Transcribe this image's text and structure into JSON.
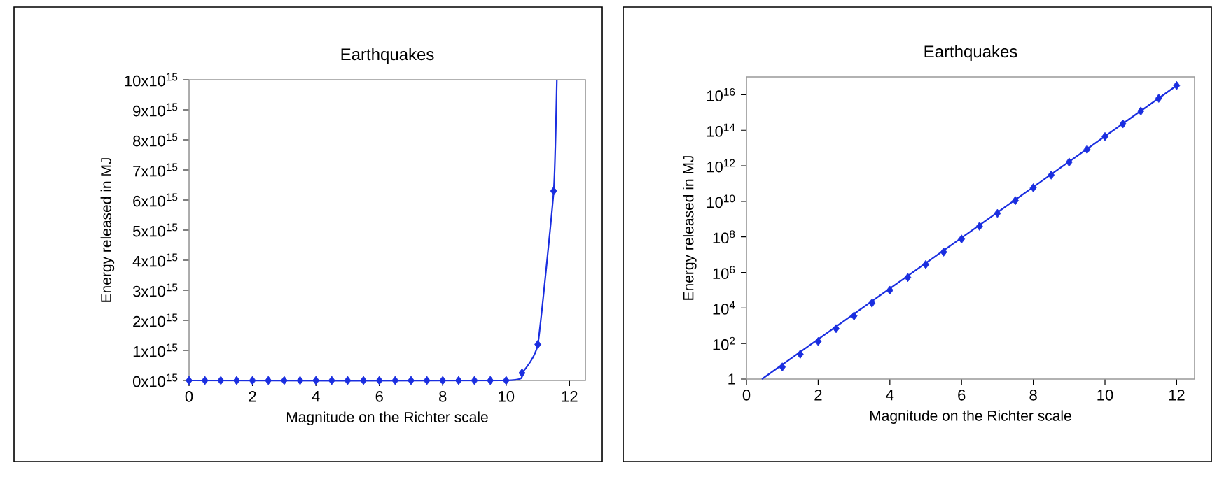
{
  "chart_data": [
    {
      "type": "line",
      "title": "Earthquakes",
      "xlabel": "Magnitude on the Richter scale",
      "ylabel": "Energy released in MJ",
      "xlim": [
        0,
        12.5
      ],
      "xticks": [
        0,
        2,
        4,
        6,
        8,
        10,
        12
      ],
      "ylim": [
        0,
        1e+16
      ],
      "yticks": [
        {
          "value": 0,
          "label": "0x10$^{15}$"
        },
        {
          "value": 1000000000000000.0,
          "label": "1x10$^{15}$"
        },
        {
          "value": 2000000000000000.0,
          "label": "2x10$^{15}$"
        },
        {
          "value": 3000000000000000.0,
          "label": "3x10$^{15}$"
        },
        {
          "value": 4000000000000000.0,
          "label": "4x10$^{15}$"
        },
        {
          "value": 5000000000000000.0,
          "label": "5x10$^{15}$"
        },
        {
          "value": 6000000000000000.0,
          "label": "6x10$^{15}$"
        },
        {
          "value": 7000000000000000.0,
          "label": "7x10$^{15}$"
        },
        {
          "value": 8000000000000000.0,
          "label": "8x10$^{15}$"
        },
        {
          "value": 9000000000000000.0,
          "label": "9x10$^{15}$"
        },
        {
          "value": 1e+16,
          "label": "10x10$^{15}$"
        }
      ],
      "series": [
        {
          "color": "#1a2ee0",
          "marker": "none",
          "x": [
            0,
            10,
            10.5,
            11,
            11.5,
            11.6
          ],
          "values": [
            0,
            0,
            250000000000000.0,
            1200000000000000.0,
            6300000000000000.0,
            1e+16
          ]
        },
        {
          "type": "scatter",
          "color": "#1a2ee0",
          "marker": "diamond",
          "x": [
            0,
            0.5,
            1,
            1.5,
            2,
            2.5,
            3,
            3.5,
            4,
            4.5,
            5,
            5.5,
            6,
            6.5,
            7,
            7.5,
            8,
            8.5,
            9,
            9.5,
            10,
            10.5,
            11,
            11.5
          ],
          "values": [
            0,
            0,
            0,
            0,
            0,
            0,
            0,
            0,
            0,
            0,
            0,
            0,
            0,
            0,
            0,
            0,
            0,
            0,
            0,
            0,
            0,
            250000000000000.0,
            1200000000000000.0,
            6300000000000000.0
          ]
        }
      ]
    },
    {
      "type": "line",
      "title": "Earthquakes",
      "xlabel": "Magnitude on the Richter scale",
      "ylabel": "Energy released in MJ",
      "log": "y",
      "xlim": [
        0,
        12.5
      ],
      "xticks": [
        0,
        2,
        4,
        6,
        8,
        10,
        12
      ],
      "ylim": [
        1,
        1e+17
      ],
      "yticks": [
        1,
        {
          "value": 100,
          "label": "10$^{2}$"
        },
        {
          "value": 10000.0,
          "label": "10$^{4}$"
        },
        {
          "value": 1000000.0,
          "label": "10$^{6}$"
        },
        {
          "value": 100000000.0,
          "label": "10$^{8}$"
        },
        {
          "value": 10000000000.0,
          "label": "10$^{10}$"
        },
        {
          "value": 1000000000000.0,
          "label": "10$^{12}$"
        },
        {
          "value": 100000000000000.0,
          "label": "10$^{14}$"
        },
        {
          "value": 1e+16,
          "label": "10$^{16}$"
        }
      ],
      "series": [
        {
          "color": "#1a2ee0",
          "marker": "none",
          "x": [
            0.43,
            12
          ],
          "values": [
            1,
            3.3e+16
          ]
        },
        {
          "type": "scatter",
          "color": "#1a2ee0",
          "marker": "diamond",
          "x": [
            1,
            1.5,
            2,
            2.5,
            3,
            3.5,
            4,
            4.5,
            5,
            5.5,
            6,
            6.5,
            7,
            7.5,
            8,
            8.5,
            9,
            9.5,
            10,
            10.5,
            11,
            11.5,
            12
          ],
          "values": [
            4.8,
            25,
            130,
            690,
            3600,
            19000,
            100000,
            520000,
            2800000,
            14000000,
            76000000,
            400000000,
            2100000000,
            11000000000,
            58000000000,
            300000000000,
            1600000000000,
            8300000000000,
            44000000000000,
            230000000000000,
            1200000000000000,
            6300000000000000,
            33000000000000000
          ]
        }
      ]
    }
  ]
}
